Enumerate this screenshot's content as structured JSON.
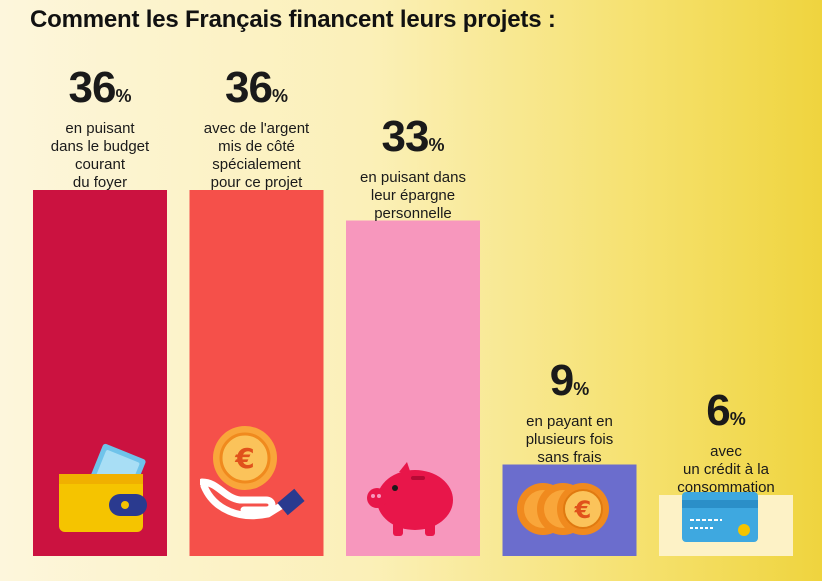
{
  "chart_data": {
    "type": "bar",
    "title": "Comment les Français financent leurs projets :",
    "unit": "%",
    "categories": [
      "en puisant dans le budget courant du foyer",
      "avec de l'argent mis de côté spécialement pour ce projet",
      "en puisant dans leur épargne personnelle",
      "en payant en plusieurs fois sans frais",
      "avec un crédit à la consommation"
    ],
    "values": [
      36,
      36,
      33,
      9,
      6
    ],
    "colors": [
      "#cb1240",
      "#f5504a",
      "#f797bd",
      "#6b6dcd",
      "#fdf2c6"
    ],
    "labels": [
      {
        "value": "36",
        "unit": "%",
        "lines": [
          "en puisant",
          "dans le budget",
          "courant",
          "du foyer"
        ]
      },
      {
        "value": "36",
        "unit": "%",
        "lines": [
          "avec de l'argent",
          "mis de côté",
          "spécialement",
          "pour ce projet"
        ]
      },
      {
        "value": "33",
        "unit": "%",
        "lines": [
          "en puisant dans",
          "leur épargne",
          "personnelle"
        ]
      },
      {
        "value": "9",
        "unit": "%",
        "lines": [
          "en payant en",
          "plusieurs fois",
          "sans frais"
        ]
      },
      {
        "value": "6",
        "unit": "%",
        "lines": [
          "avec",
          "un crédit à la",
          "consommation"
        ]
      }
    ],
    "icons": [
      "wallet-icon",
      "hand-coin-icon",
      "piggy-bank-icon",
      "coins-icon",
      "credit-card-icon"
    ],
    "ylim": [
      0,
      36
    ],
    "xlabel": "",
    "ylabel": ""
  }
}
